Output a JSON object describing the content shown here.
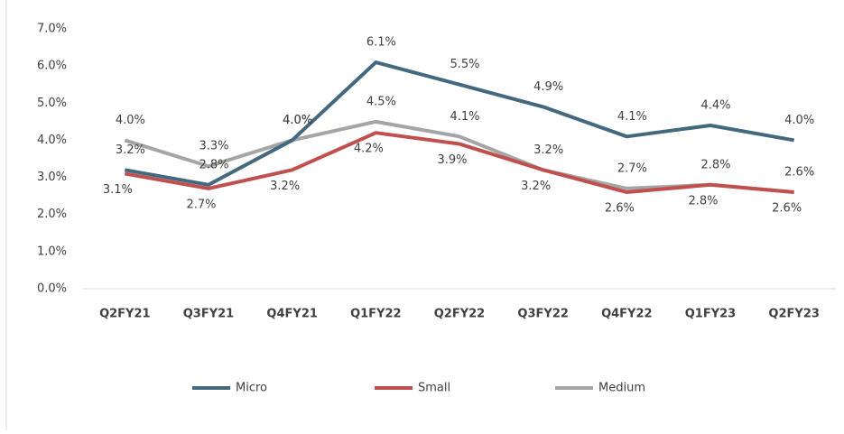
{
  "chart_data": {
    "type": "line",
    "categories": [
      "Q2FY21",
      "Q3FY21",
      "Q4FY21",
      "Q1FY22",
      "Q2FY22",
      "Q3FY22",
      "Q4FY22",
      "Q1FY23",
      "Q2FY23"
    ],
    "series": [
      {
        "name": "Micro",
        "color": "#44687d",
        "values": [
          3.2,
          2.8,
          4.0,
          6.1,
          5.5,
          4.9,
          4.1,
          4.4,
          4.0
        ],
        "value_labels": [
          "3.2%",
          "2.8%",
          "4.0%",
          "6.1%",
          "5.5%",
          "4.9%",
          "4.1%",
          "4.4%",
          "4.0%"
        ]
      },
      {
        "name": "Small",
        "color": "#c0504d",
        "values": [
          3.1,
          2.7,
          3.2,
          4.2,
          3.9,
          3.2,
          2.6,
          2.8,
          2.6
        ],
        "value_labels": [
          "3.1%",
          "2.7%",
          "3.2%",
          "4.2%",
          "3.9%",
          "3.2%",
          "2.6%",
          "2.8%",
          "2.6%"
        ]
      },
      {
        "name": "Medium",
        "color": "#a5a5a5",
        "values": [
          4.0,
          3.3,
          4.0,
          4.5,
          4.1,
          3.2,
          2.7,
          2.8,
          2.6
        ],
        "value_labels": [
          "4.0%",
          "3.3%",
          "4.0%",
          "4.5%",
          "4.1%",
          "3.2%",
          "2.7%",
          "2.8%",
          "2.6%"
        ]
      }
    ],
    "ylim": [
      0,
      7
    ],
    "yticks": [
      {
        "value": 0,
        "label": "0.0%"
      },
      {
        "value": 1,
        "label": "1.0%"
      },
      {
        "value": 2,
        "label": "2.0%"
      },
      {
        "value": 3,
        "label": "3.0%"
      },
      {
        "value": 4,
        "label": "4.0%"
      },
      {
        "value": 5,
        "label": "5.0%"
      },
      {
        "value": 6,
        "label": "6.0%"
      },
      {
        "value": 7,
        "label": "7.0%"
      }
    ],
    "grid": false,
    "legend": "bottom"
  }
}
